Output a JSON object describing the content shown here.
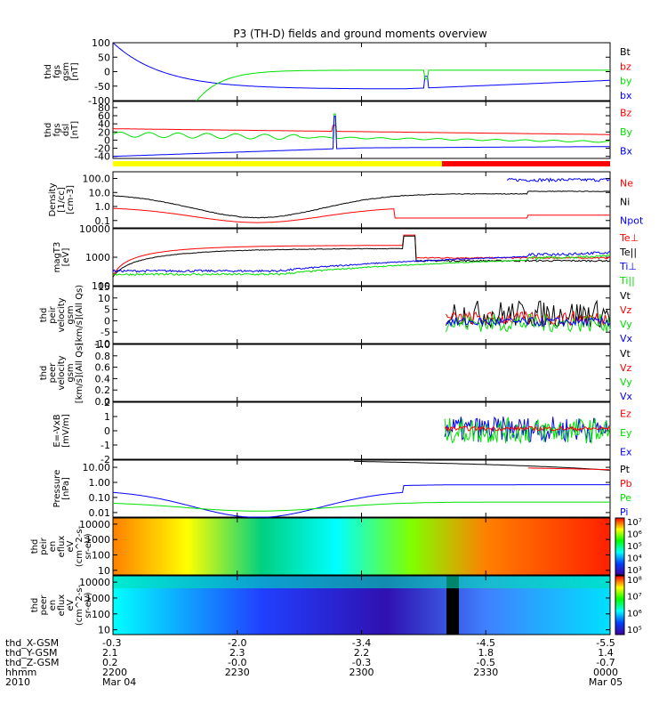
{
  "title": "P3 (TH-D) fields and ground moments overview",
  "colors": {
    "black": "#000000",
    "red": "#ff0000",
    "green": "#00e000",
    "blue": "#0000ff",
    "yellow": "#ffff00"
  },
  "chart_data": [
    {
      "type": "line",
      "id": "fgs_gsm",
      "ylabel_lines": [
        "thd",
        "fgs",
        "gsm",
        "[nT]"
      ],
      "ylim": [
        -100,
        100
      ],
      "ticks": [
        100,
        50,
        0,
        -50,
        -100
      ],
      "legend": [
        "Bt",
        "bz",
        "by",
        "bx"
      ],
      "legend_colors": [
        "black",
        "red",
        "green",
        "blue"
      ]
    },
    {
      "type": "line",
      "id": "fgs_ssl",
      "ylabel_lines": [
        "thd",
        "fgs",
        "dsl",
        "[nT]"
      ],
      "ylim": [
        -45,
        95
      ],
      "ticks": [
        80,
        60,
        40,
        20,
        0,
        -20,
        -40
      ],
      "legend": [
        "Bz",
        "By",
        "Bx"
      ],
      "legend_colors": [
        "red",
        "green",
        "blue"
      ]
    },
    {
      "type": "line",
      "id": "density",
      "scale": "log",
      "ylabel_lines": [
        "Density",
        "[1/cc]",
        "[cm-3]"
      ],
      "ylim": [
        0.03,
        300
      ],
      "ticks": [
        100.0,
        10.0,
        1.0,
        0.1
      ],
      "tick_labels": [
        "100.0",
        "10.0",
        "1.0",
        "0.1"
      ],
      "legend": [
        "Ne",
        "Ni",
        "Npot"
      ],
      "legend_colors": [
        "red",
        "black",
        "blue"
      ]
    },
    {
      "type": "line",
      "id": "temperature",
      "scale": "log",
      "ylabel_lines": [
        "magT3",
        "[eV]"
      ],
      "ylim": [
        100,
        10000
      ],
      "ticks": [
        10000,
        1000,
        100
      ],
      "tick_labels": [
        "10000",
        "1000",
        "100"
      ],
      "legend": [
        "Te⊥",
        "Te||",
        "Ti⊥",
        "Ti||"
      ],
      "legend_colors": [
        "red",
        "black",
        "blue",
        "green"
      ]
    },
    {
      "type": "line",
      "id": "peir_velocity",
      "ylabel_lines": [
        "thd",
        "peir",
        "velocity",
        "gsm",
        "[km/s](All Qs)"
      ],
      "ylim": [
        -10,
        15
      ],
      "ticks": [
        15,
        10,
        5,
        0,
        -5,
        -10
      ],
      "legend": [
        "Vt",
        "Vz",
        "Vy",
        "Vx"
      ],
      "legend_colors": [
        "black",
        "red",
        "green",
        "blue"
      ]
    },
    {
      "type": "line",
      "id": "peer_velocity",
      "ylabel_lines": [
        "thd",
        "peer",
        "velocity",
        "gsm",
        "[km/s](All Qs)"
      ],
      "ylim": [
        0,
        1
      ],
      "ticks": [
        1.0,
        0.8,
        0.6,
        0.4,
        0.2,
        0.0
      ],
      "tick_labels": [
        "1.0",
        "0.8",
        "0.6",
        "0.4",
        "0.2",
        "0.0"
      ],
      "legend": [
        "Vt",
        "Vz",
        "Vy",
        "Vx"
      ],
      "legend_colors": [
        "black",
        "red",
        "green",
        "blue"
      ]
    },
    {
      "type": "line",
      "id": "efield",
      "ylabel_lines": [
        "E=-VxB",
        "[mV/m]"
      ],
      "ylim": [
        -2,
        2
      ],
      "ticks": [
        2,
        1,
        0,
        -1,
        -2
      ],
      "legend": [
        "Ez",
        "Ey",
        "Ex"
      ],
      "legend_colors": [
        "red",
        "green",
        "blue"
      ]
    },
    {
      "type": "line",
      "id": "pressure",
      "scale": "log",
      "ylabel_lines": [
        "Pressure",
        "[nPa]"
      ],
      "ylim": [
        0.005,
        30
      ],
      "ticks": [
        10.0,
        1.0,
        0.1,
        0.01
      ],
      "tick_labels": [
        "10.00",
        "1.00",
        "0.10",
        "0.01"
      ],
      "legend": [
        "Pt",
        "Pb",
        "Pe",
        "Pi"
      ],
      "legend_colors": [
        "black",
        "red",
        "green",
        "blue"
      ]
    },
    {
      "type": "heatmap",
      "id": "peir_spec",
      "scale": "log",
      "ylabel_lines": [
        "thd",
        "peir",
        "en",
        "eflux",
        "eV",
        "(cm^2-s-",
        "sr-eV)"
      ],
      "ylim": [
        5,
        25000
      ],
      "ticks": [
        10000,
        1000,
        100,
        10
      ],
      "tick_labels": [
        "10000",
        "1000",
        "100",
        "10"
      ],
      "colorbar": [
        "10⁷",
        "10⁶",
        "10⁵",
        "10⁴",
        "10³"
      ],
      "colorbar_values": [
        7,
        6,
        5,
        4,
        3
      ]
    },
    {
      "type": "heatmap",
      "id": "peer_spec",
      "scale": "log",
      "ylabel_lines": [
        "thd",
        "peer",
        "en",
        "eflux",
        "eV",
        "(cm^2-s-",
        "sr-eV)"
      ],
      "ylim": [
        5,
        25000
      ],
      "ticks": [
        10000,
        1000,
        100,
        10
      ],
      "tick_labels": [
        "10000",
        "1000",
        "100",
        "10"
      ],
      "colorbar": [
        "10⁸",
        "10⁷",
        "10⁶",
        "10⁵"
      ],
      "colorbar_values": [
        8,
        7,
        6,
        5
      ]
    }
  ],
  "xaxis": {
    "ticks": [
      2200,
      2230,
      2300,
      2330,
      2400
    ],
    "rows": [
      {
        "label": "thd_X-GSM",
        "values": [
          "-0.3",
          "-2.0",
          "-3.4",
          "-4.5",
          "-5.5"
        ]
      },
      {
        "label": "thd_Y-GSM",
        "values": [
          "2.1",
          "2.3",
          "2.2",
          "1.8",
          "1.4"
        ]
      },
      {
        "label": "thd_Z-GSM",
        "values": [
          "0.2",
          "-0.0",
          "-0.3",
          "-0.5",
          "-0.7"
        ]
      },
      {
        "label": "hhmm",
        "values": [
          "2200",
          "2230",
          "2300",
          "2330",
          "0000"
        ]
      },
      {
        "label": "2010",
        "values": [
          "Mar 04",
          "",
          "",
          "",
          "Mar 05"
        ]
      }
    ]
  }
}
